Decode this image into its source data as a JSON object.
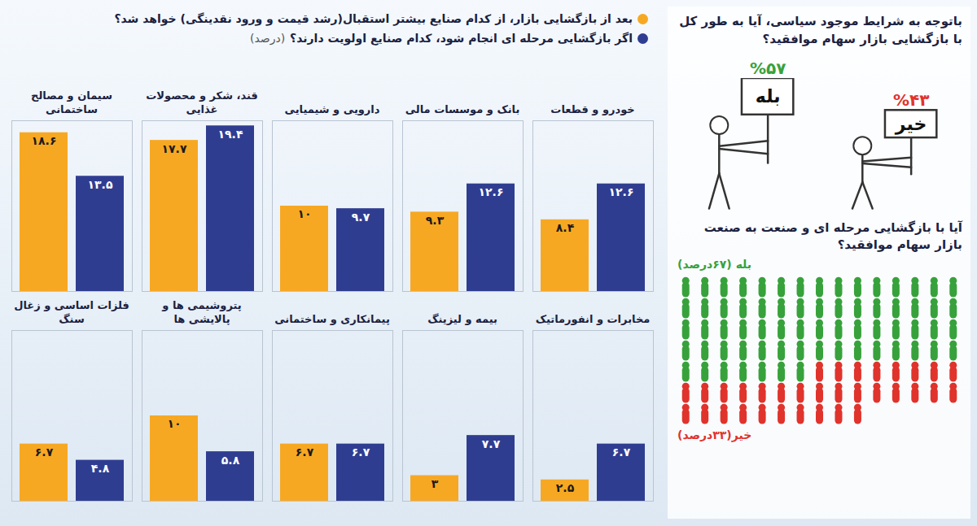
{
  "chart_data": [
    {
      "type": "bar",
      "subtitle": "(درصد)",
      "categories": [
        "خودرو و قطعات",
        "بانک و موسسات مالی",
        "دارویی و شیمیایی",
        "قند، شکر و محصولات غذایی",
        "سیمان و مصالح ساختمانی",
        "مخابرات و انفورماتیک",
        "بیمه و لیزینگ",
        "پیمانکاری و ساختمانی",
        "پتروشیمی ها و پالایشی ها",
        "فلزات اساسی و زغال سنگ"
      ],
      "series": [
        {
          "name": "بعد از بازگشایی بازار، از کدام صنایع بیشتر استقبال(رشد قیمت و ورود نقدینگی) خواهد شد؟",
          "color": "#f7a823",
          "values": [
            8.4,
            9.3,
            10,
            17.7,
            18.6,
            2.5,
            3,
            6.7,
            10,
            6.7
          ],
          "value_labels": [
            "۸.۴",
            "۹.۳",
            "۱۰",
            "۱۷.۷",
            "۱۸.۶",
            "۲.۵",
            "۳",
            "۶.۷",
            "۱۰",
            "۶.۷"
          ]
        },
        {
          "name": "اگر بازگشایی مرحله ای انجام شود، کدام صنایع اولویت دارند؟",
          "color": "#2f3d91",
          "values": [
            12.6,
            12.6,
            9.7,
            19.4,
            13.5,
            6.7,
            7.7,
            6.7,
            5.8,
            4.8
          ],
          "value_labels": [
            "۱۲.۶",
            "۱۲.۶",
            "۹.۷",
            "۱۹.۴",
            "۱۳.۵",
            "۶.۷",
            "۷.۷",
            "۶.۷",
            "۵.۸",
            "۴.۸"
          ]
        }
      ],
      "ylim": [
        0,
        20
      ],
      "tick_labels": false,
      "data_labels": true,
      "legend": "top"
    },
    {
      "type": "bar",
      "title": "باتوجه به شرایط موجود سیاسی، آیا به طور کل با بازگشایی بازار سهام موافقید؟",
      "categories": [
        "بله",
        "خیر"
      ],
      "values": [
        57,
        43
      ],
      "value_labels": [
        "%۵۷",
        "%۴۳"
      ],
      "colors": [
        "#37a23b",
        "#e0332c"
      ],
      "tick_labels": false,
      "data_labels": true
    },
    {
      "type": "pictogram",
      "title": "آیا با بازگشایی مرحله ای و صنعت به صنعت بازار سهام موافقید؟",
      "series": [
        {
          "name": "بله (۶۷درصد)",
          "color": "#37a23b",
          "values": [
            67
          ]
        },
        {
          "name": "خیر(۳۳درصد)",
          "color": "#e0332c",
          "values": [
            33
          ]
        }
      ],
      "legend": "left"
    }
  ]
}
